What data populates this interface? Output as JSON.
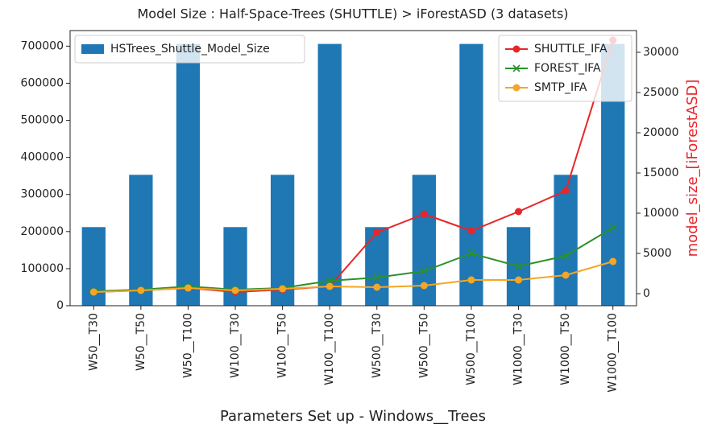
{
  "chart_data": {
    "type": "bar_line",
    "title": "Model Size : Half-Space-Trees (SHUTTLE) > iForestASD (3 datasets)",
    "x_label": "Parameters Set up - Windows__Trees",
    "y2_label": "model_size_[iForestASD]",
    "y2_label_color": "#e8262a",
    "categories": [
      "W50__T30",
      "W50__T50",
      "W50__T100",
      "W100__T30",
      "W100__T50",
      "W100__T100",
      "W500__T30",
      "W500__T50",
      "W500__T100",
      "W1000__T30",
      "W1000__T50",
      "W1000__T100"
    ],
    "series": [
      {
        "name": "HSTrees_Shuttle_Model_Size",
        "color": "#1f77b4",
        "kind": "bar",
        "values": [
          212000,
          353000,
          706000,
          212000,
          353000,
          706000,
          212000,
          353000,
          706000,
          212000,
          353000,
          706000
        ]
      },
      {
        "name": "SHUTTLE_IFA",
        "color": "#e8262a",
        "kind": "line",
        "marker": "circle",
        "axis": "y2",
        "values": [
          200,
          400,
          700,
          200,
          500,
          900,
          7600,
          9900,
          7800,
          10200,
          12800,
          31500
        ]
      },
      {
        "name": "FOREST_IFA",
        "color": "#2a922a",
        "kind": "line",
        "marker": "x",
        "axis": "y2",
        "values": [
          300,
          500,
          900,
          500,
          700,
          1600,
          2000,
          2800,
          5000,
          3400,
          4700,
          8200
        ]
      },
      {
        "name": "SMTP_IFA",
        "color": "#f5a623",
        "kind": "line",
        "marker": "circle",
        "axis": "y2",
        "values": [
          200,
          400,
          700,
          400,
          600,
          900,
          800,
          1000,
          1700,
          1700,
          2300,
          4000
        ]
      }
    ],
    "ylim": [
      0,
      742000
    ],
    "yticks": [
      0,
      100000,
      200000,
      300000,
      400000,
      500000,
      600000,
      700000
    ],
    "y2lim": [
      -1500,
      32700
    ],
    "y2ticks": [
      0,
      5000,
      10000,
      15000,
      20000,
      25000,
      30000
    ],
    "bar_legend": "upper left",
    "line_legend": "upper right"
  }
}
